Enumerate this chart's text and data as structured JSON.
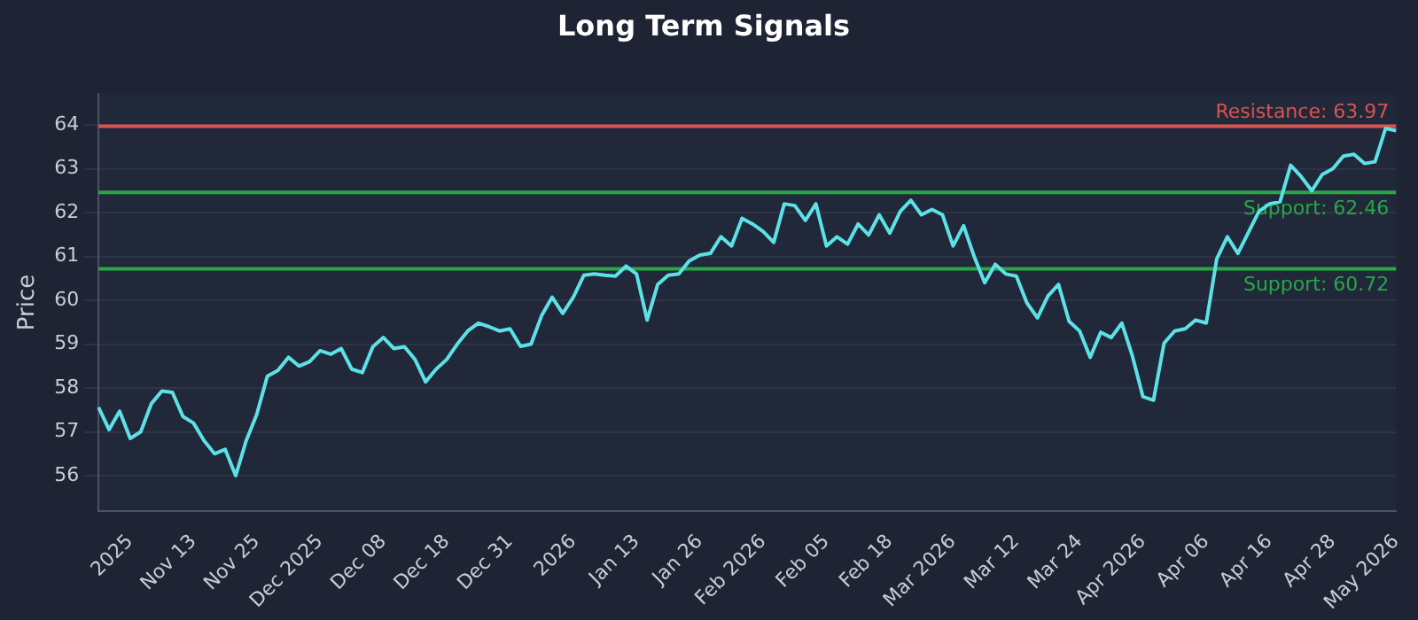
{
  "chart_data": {
    "type": "line",
    "title": "Long Term Signals",
    "ylabel": "Price",
    "categories": [
      null,
      null,
      null,
      "2025",
      null,
      null,
      null,
      null,
      null,
      "Nov 13",
      null,
      null,
      null,
      null,
      null,
      "Nov 25",
      null,
      null,
      null,
      null,
      null,
      "Dec 2025",
      null,
      null,
      null,
      null,
      null,
      "Dec 08",
      null,
      null,
      null,
      null,
      null,
      "Dec 18",
      null,
      null,
      null,
      null,
      null,
      "Dec 31",
      null,
      null,
      null,
      null,
      null,
      "2026",
      null,
      null,
      null,
      null,
      null,
      "Jan 13",
      null,
      null,
      null,
      null,
      null,
      "Jan 26",
      null,
      null,
      null,
      null,
      null,
      "Feb 2026",
      null,
      null,
      null,
      null,
      null,
      "Feb 05",
      null,
      null,
      null,
      null,
      null,
      "Feb 18",
      null,
      null,
      null,
      null,
      null,
      "Mar 2026",
      null,
      null,
      null,
      null,
      null,
      "Mar 12",
      null,
      null,
      null,
      null,
      null,
      "Mar 24",
      null,
      null,
      null,
      null,
      null,
      "Apr 2026",
      null,
      null,
      null,
      null,
      null,
      "Apr 06",
      null,
      null,
      null,
      null,
      null,
      "Apr 16",
      null,
      null,
      null,
      null,
      null,
      "Apr 28",
      null,
      null,
      null,
      null,
      null,
      "May 2026"
    ],
    "series": [
      {
        "color": "#5ce1e6",
        "values": [
          57.56,
          57.05,
          57.47,
          56.85,
          57.0,
          57.64,
          57.93,
          57.9,
          57.35,
          57.2,
          56.8,
          56.5,
          56.6,
          56.0,
          56.8,
          57.4,
          58.27,
          58.4,
          58.7,
          58.5,
          58.6,
          58.85,
          58.77,
          58.9,
          58.43,
          58.35,
          58.94,
          59.15,
          58.9,
          58.94,
          58.65,
          58.14,
          58.43,
          58.65,
          59.0,
          59.3,
          59.48,
          59.4,
          59.3,
          59.35,
          58.95,
          59.0,
          59.65,
          60.07,
          59.7,
          60.07,
          60.57,
          60.6,
          60.57,
          60.55,
          60.78,
          60.6,
          59.55,
          60.36,
          60.57,
          60.6,
          60.9,
          61.03,
          61.07,
          61.45,
          61.24,
          61.87,
          61.74,
          61.57,
          61.32,
          62.2,
          62.16,
          61.82,
          62.2,
          61.24,
          61.45,
          61.28,
          61.74,
          61.49,
          61.95,
          61.53,
          62.03,
          62.28,
          61.95,
          62.07,
          61.95,
          61.24,
          61.7,
          61.0,
          60.4,
          60.82,
          60.6,
          60.55,
          59.94,
          59.6,
          60.1,
          60.36,
          59.52,
          59.3,
          58.7,
          59.27,
          59.15,
          59.48,
          58.73,
          57.8,
          57.72,
          59.02,
          59.3,
          59.35,
          59.55,
          59.48,
          60.95,
          61.45,
          61.07,
          61.55,
          62.03,
          62.2,
          62.25,
          63.08,
          62.82,
          62.5,
          62.87,
          63.0,
          63.29,
          63.33,
          63.12,
          63.16,
          63.92,
          63.87
        ]
      }
    ],
    "ylim": [
      55.2,
      64.7
    ],
    "yticks": [
      56,
      57,
      58,
      59,
      60,
      61,
      62,
      63,
      64
    ],
    "grid": "y",
    "legend": false,
    "marker": "none",
    "line_style": "solid",
    "ref_lines": [
      {
        "axis": "y",
        "value": 63.97,
        "label": "Resistance: 63.97",
        "color": "#d9534f"
      },
      {
        "axis": "y",
        "value": 62.46,
        "label": "Support: 62.46",
        "color": "#28a745"
      },
      {
        "axis": "y",
        "value": 60.72,
        "label": "Support: 60.72",
        "color": "#28a745"
      }
    ]
  }
}
